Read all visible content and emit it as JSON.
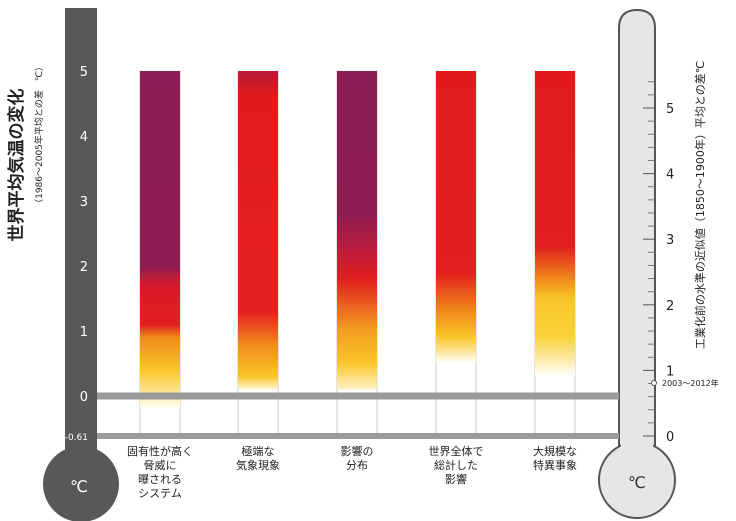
{
  "chart_data": {
    "type": "bar",
    "left_axis": {
      "title": "世界平均気温の変化",
      "subtitle": "（1986〜2005年平均との差　℃）",
      "ticks": [
        "-0.61",
        "0",
        "1",
        "2",
        "3",
        "4",
        "5"
      ],
      "tick_values": [
        -0.61,
        0,
        1,
        2,
        3,
        4,
        5
      ],
      "unit": "℃",
      "ylim": [
        -0.61,
        5
      ]
    },
    "right_axis": {
      "title": "工業化前の水準の近似値（1850〜1900年）平均との差℃",
      "ticks": [
        "0",
        "1",
        "2",
        "3",
        "4",
        "5"
      ],
      "tick_values": [
        0,
        1,
        2,
        3,
        4,
        5
      ],
      "unit": "℃",
      "annotation": "2003〜2012年"
    },
    "categories": [
      "固有性が高く脅威に曝されるシステム",
      "極端な気象現象",
      "影響の分布",
      "世界全体で総計した影響",
      "大規模な特異事象"
    ],
    "category_labels": [
      [
        "固有性が高く",
        "脅威に",
        "曝される",
        "システム"
      ],
      [
        "極端な",
        "気象現象"
      ],
      [
        "影響の",
        "分布"
      ],
      [
        "世界全体で",
        "総計した",
        "影響"
      ],
      [
        "大規模な",
        "特異事象"
      ]
    ],
    "bars": [
      {
        "bottom": -0.2,
        "top": 5,
        "stops": [
          {
            "value": -0.2,
            "color": "#ffffff"
          },
          {
            "value": 0.0,
            "color": "#fde9a6"
          },
          {
            "value": 0.4,
            "color": "#f9c62a"
          },
          {
            "value": 0.9,
            "color": "#f08a1a"
          },
          {
            "value": 1.1,
            "color": "#e11f1f"
          },
          {
            "value": 1.7,
            "color": "#d81a2a"
          },
          {
            "value": 2.0,
            "color": "#8e1d52"
          },
          {
            "value": 5,
            "color": "#8b1e54"
          }
        ]
      },
      {
        "bottom": 0.1,
        "top": 5,
        "stops": [
          {
            "value": 0.1,
            "color": "#fff6d8"
          },
          {
            "value": 0.3,
            "color": "#f9c62a"
          },
          {
            "value": 0.8,
            "color": "#f08a1a"
          },
          {
            "value": 1.3,
            "color": "#e52020"
          },
          {
            "value": 4.6,
            "color": "#e11b1b"
          },
          {
            "value": 5,
            "color": "#b81a3a"
          }
        ]
      },
      {
        "bottom": 0.1,
        "top": 5,
        "stops": [
          {
            "value": 0.1,
            "color": "#fff1c8"
          },
          {
            "value": 0.5,
            "color": "#f9c62a"
          },
          {
            "value": 1.0,
            "color": "#f3a01f"
          },
          {
            "value": 1.8,
            "color": "#e11f1f"
          },
          {
            "value": 2.2,
            "color": "#c01c38"
          },
          {
            "value": 2.8,
            "color": "#8e1d52"
          },
          {
            "value": 5,
            "color": "#8b1e54"
          }
        ]
      },
      {
        "bottom": 0.5,
        "top": 5,
        "stops": [
          {
            "value": 0.5,
            "color": "#ffffff"
          },
          {
            "value": 0.9,
            "color": "#f9c62a"
          },
          {
            "value": 1.3,
            "color": "#f08a1a"
          },
          {
            "value": 1.9,
            "color": "#e11f1f"
          },
          {
            "value": 5,
            "color": "#e11b1b"
          }
        ]
      },
      {
        "bottom": 0.3,
        "top": 5,
        "stops": [
          {
            "value": 0.3,
            "color": "#ffffff"
          },
          {
            "value": 0.9,
            "color": "#f9d23a"
          },
          {
            "value": 1.5,
            "color": "#f9c62a"
          },
          {
            "value": 1.8,
            "color": "#f08a1a"
          },
          {
            "value": 2.3,
            "color": "#e11f1f"
          },
          {
            "value": 5,
            "color": "#e11b1b"
          }
        ]
      }
    ],
    "colors": {
      "left_thermometer": "#585858",
      "right_thermometer_fill": "#e6e6e6",
      "right_thermometer_stroke": "#555555",
      "reference_band": "#9a9a9a",
      "grid": "#c8c8c8"
    }
  }
}
